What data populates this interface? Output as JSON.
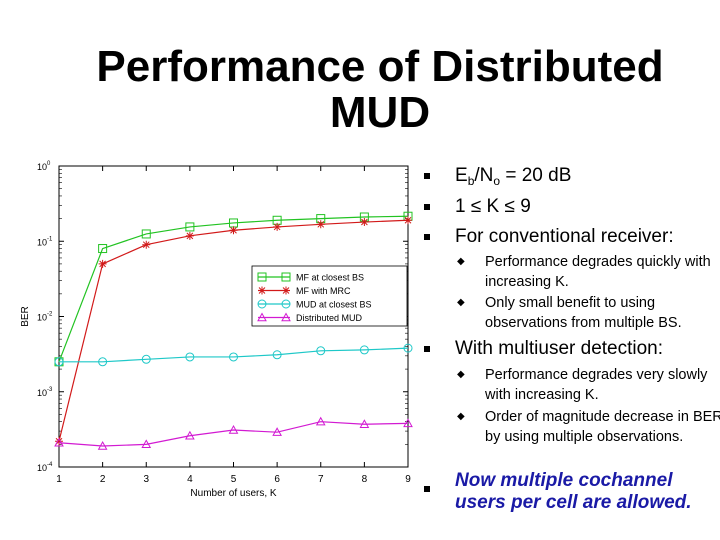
{
  "slide": {
    "title_line1": "Performance of Distributed",
    "title_line2": "MUD"
  },
  "bullets": {
    "eb": "E",
    "eb_sub": "b",
    "slash": "/N",
    "no_sub": "o",
    "eq": " = 20 dB",
    "k_range": "1 ≤ K ≤ 9",
    "conventional": "For conventional receiver:",
    "conv_1": "Performance degrades quickly with increasing K.",
    "conv_2": "Only small benefit to using observations from multiple BS.",
    "multiuser": "With multiuser detection:",
    "mud_1": "Performance degrades very slowly with increasing K.",
    "mud_2": "Order of magnitude decrease in BER by using multiple observations.",
    "final": "Now multiple cochannel users per cell are allowed."
  },
  "chart_data": {
    "type": "line",
    "xlabel": "Number of users, K",
    "ylabel": "BER",
    "x": [
      1,
      2,
      3,
      4,
      5,
      6,
      7,
      8,
      9
    ],
    "xlim": [
      1,
      9
    ],
    "ylim": [
      0.0001,
      1
    ],
    "yscale": "log",
    "xticks": [
      "1",
      "2",
      "3",
      "4",
      "5",
      "6",
      "7",
      "8",
      "9"
    ],
    "yticks": [
      {
        "base": "10",
        "exp": "0"
      },
      {
        "base": "10",
        "exp": "-1"
      },
      {
        "base": "10",
        "exp": "-2"
      },
      {
        "base": "10",
        "exp": "-3"
      },
      {
        "base": "10",
        "exp": "-4"
      }
    ],
    "grid": false,
    "legend_position": "center-right",
    "series": [
      {
        "name": "MF at closest BS",
        "color": "#22c322",
        "marker": "square",
        "values": [
          0.0025,
          0.08,
          0.125,
          0.155,
          0.175,
          0.19,
          0.2,
          0.21,
          0.215
        ]
      },
      {
        "name": "MF with MRC",
        "color": "#d21a1a",
        "marker": "star",
        "values": [
          0.00022,
          0.05,
          0.09,
          0.118,
          0.14,
          0.155,
          0.168,
          0.18,
          0.19
        ]
      },
      {
        "name": "MUD at closest BS",
        "color": "#1ec8c8",
        "marker": "circle",
        "values": [
          0.0025,
          0.0025,
          0.0027,
          0.0029,
          0.0029,
          0.0031,
          0.0035,
          0.0036,
          0.0038
        ]
      },
      {
        "name": "Distributed MUD",
        "color": "#d21ad2",
        "marker": "triangle",
        "values": [
          0.00021,
          0.00019,
          0.0002,
          0.00026,
          0.00031,
          0.00029,
          0.0004,
          0.00037,
          0.00038
        ]
      }
    ]
  }
}
